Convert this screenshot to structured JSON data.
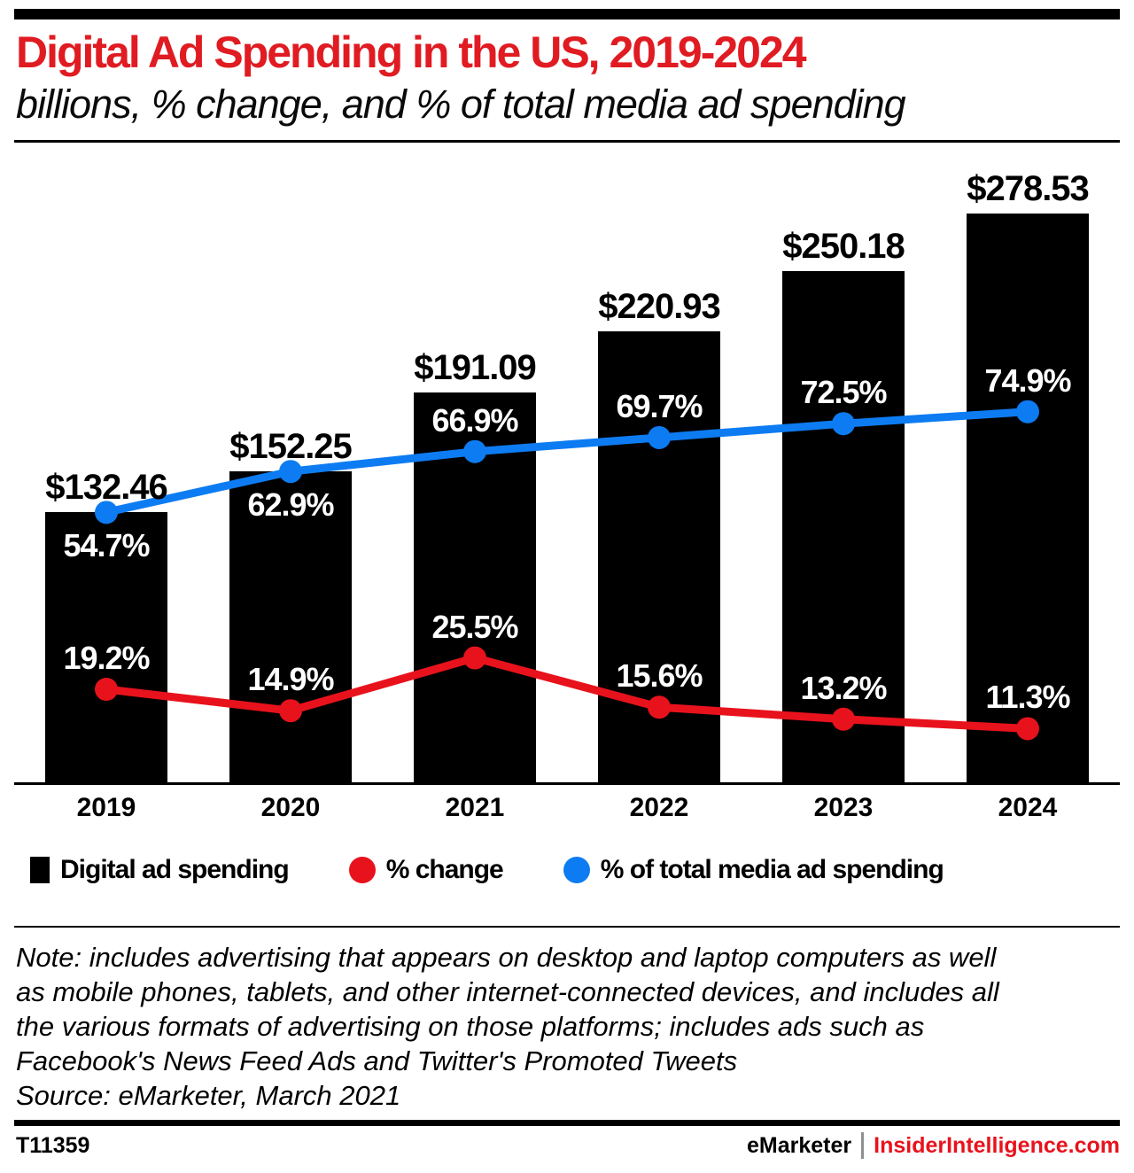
{
  "colors": {
    "title_red": "#e01b22",
    "red": "#e8121c",
    "blue": "#0d7cf2",
    "bar_black": "#000000",
    "background": "#ffffff"
  },
  "chart_data": {
    "type": "bar",
    "title": "Digital Ad Spending in the US, 2019-2024",
    "subtitle": "billions, % change, and % of total media ad spending",
    "categories": [
      "2019",
      "2020",
      "2021",
      "2022",
      "2023",
      "2024"
    ],
    "value_prefix": "$",
    "line_value_suffix": "%",
    "series": [
      {
        "name": "Digital ad spending",
        "type": "bar",
        "unit": "billions USD",
        "color": "#000000",
        "values": [
          132.46,
          152.25,
          191.09,
          220.93,
          250.18,
          278.53
        ]
      },
      {
        "name": "% change",
        "type": "line",
        "unit": "percent",
        "color": "#e8121c",
        "values": [
          19.2,
          14.9,
          25.5,
          15.6,
          13.2,
          11.3
        ]
      },
      {
        "name": "% of total media ad spending",
        "type": "line",
        "unit": "percent",
        "color": "#0d7cf2",
        "values": [
          54.7,
          62.9,
          66.9,
          69.7,
          72.5,
          74.9
        ]
      }
    ],
    "axes": {
      "bar_axis_min": 0,
      "line_axis_range": [
        0,
        100
      ],
      "gridlines": false
    },
    "legend_position": "bottom"
  },
  "note": {
    "lines": [
      "Note: includes advertising that appears on desktop and laptop computers as well",
      "as mobile phones, tablets, and other internet-connected devices, and includes all",
      "the various formats of advertising on those platforms; includes ads such as",
      "Facebook's News Feed Ads and Twitter's Promoted Tweets"
    ],
    "source": "Source: eMarketer, March 2021"
  },
  "footer": {
    "chart_id": "T11359",
    "brand": "eMarketer",
    "site": "InsiderIntelligence.com"
  }
}
